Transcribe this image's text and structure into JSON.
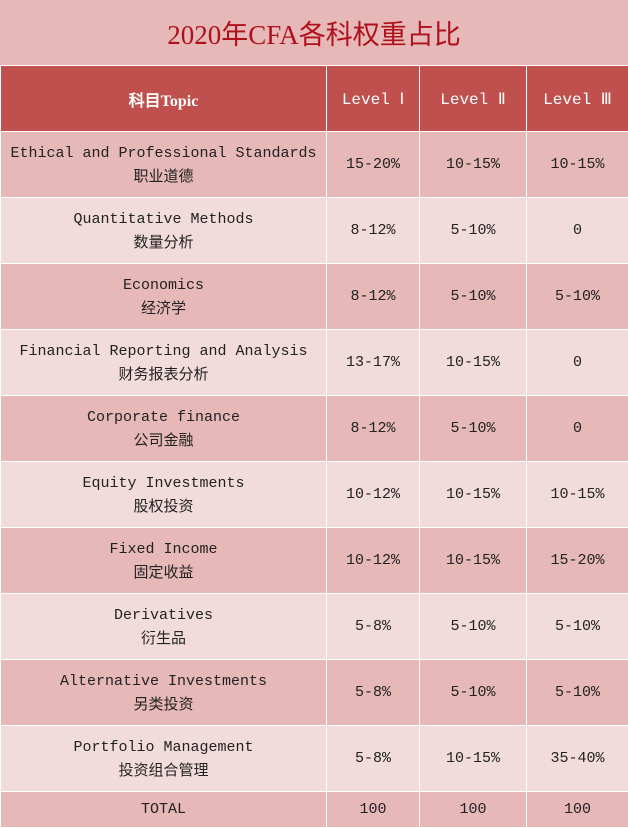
{
  "title": "2020年CFA各科权重占比",
  "headers": [
    "科目Topic",
    "Level Ⅰ",
    "Level Ⅱ",
    "Level Ⅲ"
  ],
  "rows": [
    {
      "en": "Ethical and Professional Standards",
      "zh": "职业道德",
      "l1": "15-20%",
      "l2": "10-15%",
      "l3": "10-15%"
    },
    {
      "en": "Quantitative Methods",
      "zh": "数量分析",
      "l1": "8-12%",
      "l2": "5-10%",
      "l3": "0"
    },
    {
      "en": "Economics",
      "zh": "经济学",
      "l1": "8-12%",
      "l2": "5-10%",
      "l3": "5-10%"
    },
    {
      "en": "Financial Reporting and Analysis",
      "zh": "财务报表分析",
      "l1": "13-17%",
      "l2": "10-15%",
      "l3": "0"
    },
    {
      "en": "Corporate finance",
      "zh": "公司金融",
      "l1": "8-12%",
      "l2": "5-10%",
      "l3": "0"
    },
    {
      "en": "Equity Investments",
      "zh": "股权投资",
      "l1": "10-12%",
      "l2": "10-15%",
      "l3": "10-15%"
    },
    {
      "en": "Fixed Income",
      "zh": "固定收益",
      "l1": "10-12%",
      "l2": "10-15%",
      "l3": "15-20%"
    },
    {
      "en": "Derivatives",
      "zh": "衍生品",
      "l1": "5-8%",
      "l2": "5-10%",
      "l3": "5-10%"
    },
    {
      "en": "Alternative Investments",
      "zh": "另类投资",
      "l1": "5-8%",
      "l2": "5-10%",
      "l3": "5-10%"
    },
    {
      "en": "Portfolio Management",
      "zh": "投资组合管理",
      "l1": "5-8%",
      "l2": "10-15%",
      "l3": "35-40%"
    }
  ],
  "total": {
    "label": "TOTAL",
    "l1": "100",
    "l2": "100",
    "l3": "100"
  },
  "colors": {
    "header": "#c0504d",
    "title_text": "#b0101c",
    "row_dark": "#e6b8b7",
    "row_light": "#f2dcdb"
  }
}
